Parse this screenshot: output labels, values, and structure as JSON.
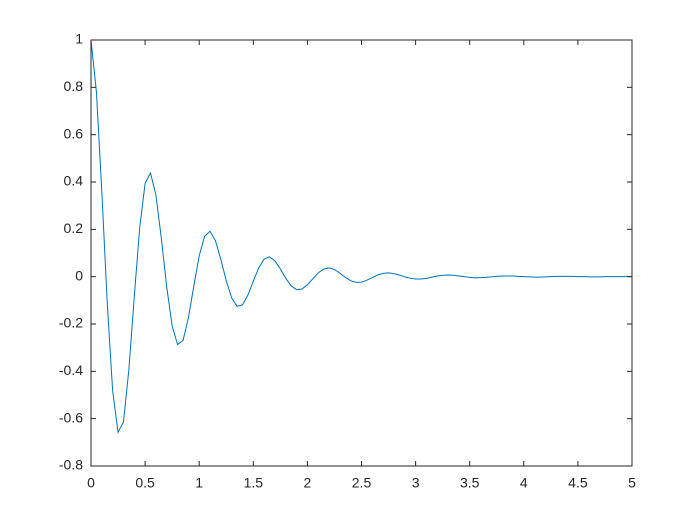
{
  "chart_data": {
    "type": "line",
    "x": [
      0,
      0.05,
      0.1,
      0.15,
      0.2,
      0.25,
      0.3,
      0.35,
      0.4,
      0.45,
      0.5,
      0.55,
      0.6,
      0.65,
      0.7,
      0.75,
      0.8,
      0.85,
      0.9,
      0.95,
      1,
      1.05,
      1.1,
      1.15,
      1.2,
      1.25,
      1.3,
      1.35,
      1.4,
      1.45,
      1.5,
      1.55,
      1.6,
      1.65,
      1.7,
      1.75,
      1.8,
      1.85,
      1.9,
      1.95,
      2,
      2.05,
      2.1,
      2.15,
      2.2,
      2.25,
      2.3,
      2.35,
      2.4,
      2.45,
      2.5,
      2.55,
      2.6,
      2.65,
      2.7,
      2.75,
      2.8,
      2.85,
      2.9,
      2.95,
      3,
      3.05,
      3.1,
      3.15,
      3.2,
      3.25,
      3.3,
      3.35,
      3.4,
      3.45,
      3.5,
      3.55,
      3.6,
      3.65,
      3.7,
      3.75,
      3.8,
      3.85,
      3.9,
      3.95,
      4,
      4.05,
      4.1,
      4.15,
      4.2,
      4.25,
      4.3,
      4.35,
      4.4,
      4.45,
      4.5,
      4.55,
      4.6,
      4.65,
      4.7,
      4.75,
      4.8,
      4.85,
      4.9,
      4.95,
      5
    ],
    "values": [
      1,
      0.781,
      0.359,
      -0.111,
      -0.482,
      -0.658,
      -0.614,
      -0.393,
      -0.084,
      0.207,
      0.394,
      0.438,
      0.345,
      0.162,
      -0.044,
      -0.208,
      -0.287,
      -0.27,
      -0.175,
      -0.04,
      0.088,
      0.171,
      0.192,
      0.152,
      0.073,
      -0.017,
      -0.09,
      -0.125,
      -0.119,
      -0.078,
      -0.019,
      0.037,
      0.074,
      0.084,
      0.067,
      0.033,
      -0.007,
      -0.039,
      -0.055,
      -0.052,
      -0.034,
      -0.009,
      0.016,
      0.032,
      0.037,
      0.03,
      0.015,
      -0.003,
      -0.017,
      -0.024,
      -0.023,
      -0.015,
      -0.004,
      0.007,
      0.014,
      0.016,
      0.013,
      0.007,
      -0.001,
      -0.007,
      -0.01,
      -0.01,
      -0.007,
      -0.002,
      0.003,
      0.006,
      0.007,
      0.006,
      0.003,
      0,
      -0.003,
      -0.005,
      -0.004,
      -0.003,
      -0.001,
      0.001,
      0.003,
      0.003,
      0.003,
      0.001,
      0,
      -0.001,
      -0.002,
      -0.002,
      -0.001,
      0,
      0.001,
      0.001,
      0.001,
      0.001,
      0,
      0,
      -0.001,
      -0.001,
      -0.001,
      0,
      0,
      0,
      0,
      0,
      0
    ],
    "color": "#0072bd",
    "xlim": [
      0,
      5
    ],
    "xticks": [
      0,
      0.5,
      1,
      1.5,
      2,
      2.5,
      3,
      3.5,
      4,
      4.5,
      5
    ],
    "ylim": [
      -0.8,
      1
    ],
    "yticks": [
      -0.8,
      -0.6,
      -0.4,
      -0.2,
      0,
      0.2,
      0.4,
      0.6,
      0.8,
      1
    ]
  }
}
